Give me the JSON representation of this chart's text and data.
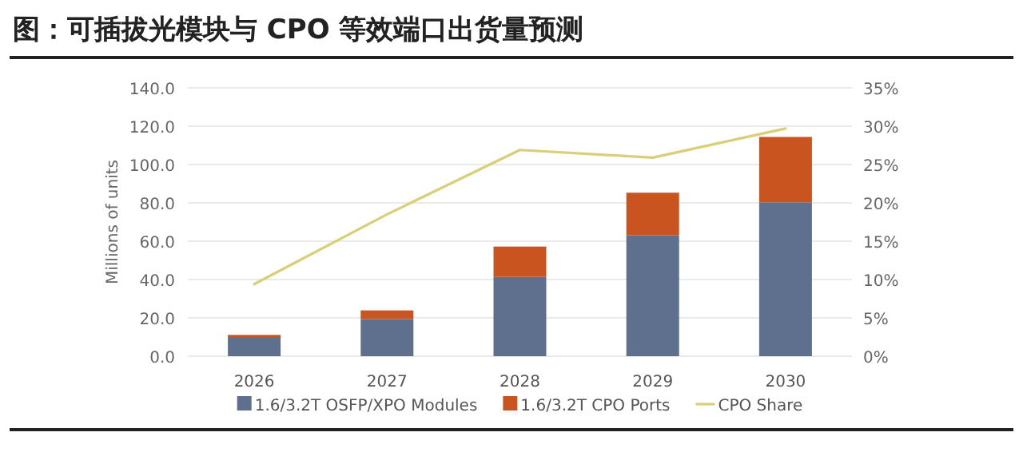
{
  "chart_data": {
    "type": "bar",
    "title": "图：可插拔光模块与 CPO 等效端口出货量预测",
    "ylabel": "Millions of units",
    "categories": [
      "2026",
      "2027",
      "2028",
      "2029",
      "2030"
    ],
    "stacked": true,
    "grid": "y",
    "legend": "bottom",
    "series": [
      {
        "name": "1.6/3.2T OSFP/XPO Modules",
        "color": "#5f6f8e",
        "values": [
          10.0,
          19.4,
          41.4,
          63.1,
          80.3
        ]
      },
      {
        "name": "1.6/3.2T CPO Ports",
        "color": "#c9541f",
        "values": [
          1.1,
          4.5,
          15.8,
          22.2,
          34.1
        ]
      },
      {
        "name": "CPO Share",
        "type": "line",
        "axis": "y2",
        "color": "#d8cf78",
        "values": [
          9.4,
          18.5,
          26.9,
          25.9,
          29.7
        ]
      }
    ],
    "ylim": [
      0,
      140
    ],
    "yticks": [
      {
        "value": 0,
        "label": "0.0"
      },
      {
        "value": 20,
        "label": "20.0"
      },
      {
        "value": 40,
        "label": "40.0"
      },
      {
        "value": 60,
        "label": "60.0"
      },
      {
        "value": 80,
        "label": "80.0"
      },
      {
        "value": 100,
        "label": "100.0"
      },
      {
        "value": 120,
        "label": "120.0"
      },
      {
        "value": 140,
        "label": "140.0"
      }
    ],
    "y2lim": [
      0,
      35
    ],
    "y2ticks": [
      {
        "value": 0,
        "label": "0%"
      },
      {
        "value": 5,
        "label": "5%"
      },
      {
        "value": 10,
        "label": "10%"
      },
      {
        "value": 15,
        "label": "15%"
      },
      {
        "value": 20,
        "label": "20%"
      },
      {
        "value": 25,
        "label": "25%"
      },
      {
        "value": 30,
        "label": "30%"
      },
      {
        "value": 35,
        "label": "35%"
      }
    ]
  }
}
